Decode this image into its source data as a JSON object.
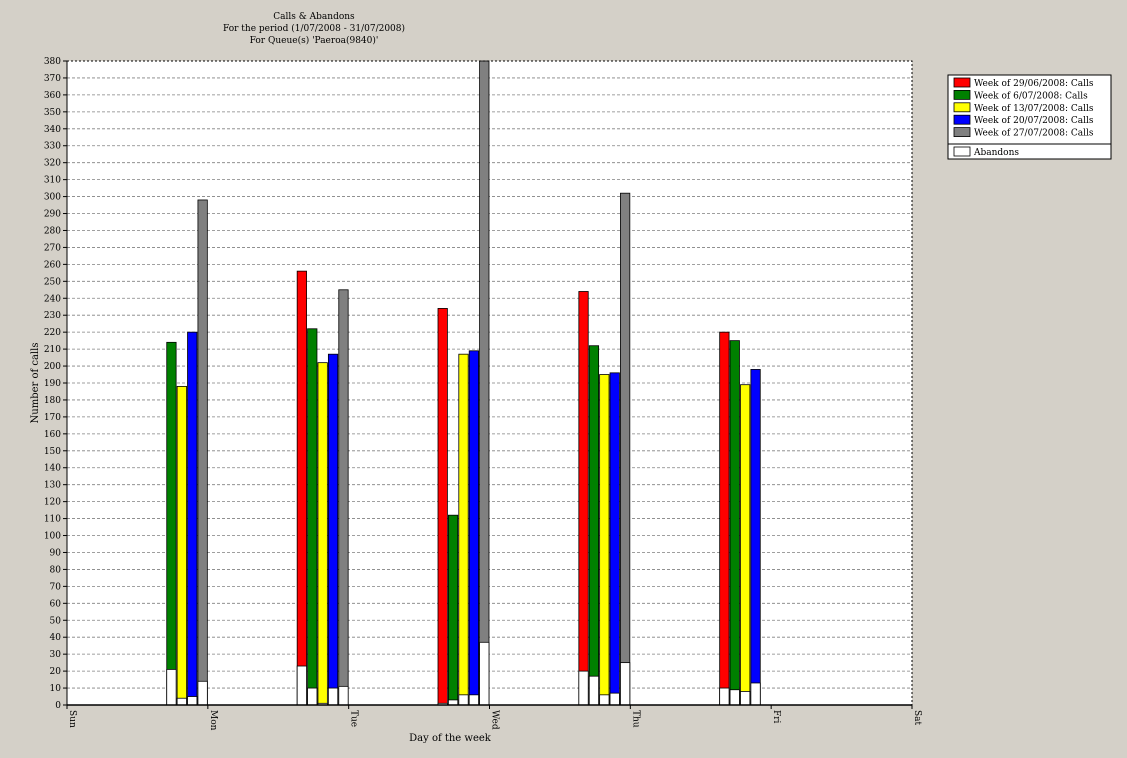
{
  "chart_data": {
    "type": "bar",
    "title_lines": [
      "Calls & Abandons",
      "For the period (1/07/2008 - 31/07/2008)",
      "For Queue(s) 'Paeroa(9840)'"
    ],
    "xlabel": "Day of the week",
    "ylabel": "Number of calls",
    "ylim": [
      0,
      380
    ],
    "ytick_step": 10,
    "grid": true,
    "legend_position": "right",
    "categories": [
      "Sun",
      "Mon",
      "Tue",
      "Wed",
      "Thu",
      "Fri",
      "Sat"
    ],
    "series": [
      {
        "name": "Week of 29/06/2008: Calls",
        "color": "#ff0000",
        "values": [
          null,
          null,
          256,
          234,
          244,
          220,
          null
        ],
        "abandons": [
          null,
          null,
          23,
          1,
          20,
          10,
          null
        ]
      },
      {
        "name": "Week of 6/07/2008: Calls",
        "color": "#008000",
        "values": [
          null,
          214,
          222,
          112,
          212,
          215,
          null
        ],
        "abandons": [
          null,
          21,
          10,
          3,
          17,
          9,
          null
        ]
      },
      {
        "name": "Week of 13/07/2008: Calls",
        "color": "#ffff00",
        "values": [
          null,
          188,
          202,
          207,
          195,
          189,
          null
        ],
        "abandons": [
          null,
          4,
          1,
          6,
          6,
          8,
          null
        ]
      },
      {
        "name": "Week of 20/07/2008: Calls",
        "color": "#0000ff",
        "values": [
          null,
          220,
          207,
          209,
          196,
          198,
          null
        ],
        "abandons": [
          null,
          5,
          10,
          6,
          7,
          13,
          null
        ]
      },
      {
        "name": "Week of 27/07/2008: Calls",
        "color": "#808080",
        "values": [
          null,
          298,
          245,
          380,
          302,
          null,
          null
        ],
        "abandons": [
          null,
          14,
          11,
          37,
          25,
          null,
          null
        ]
      }
    ],
    "abandons_legend": {
      "name": "Abandons",
      "color": "#ffffff"
    }
  }
}
